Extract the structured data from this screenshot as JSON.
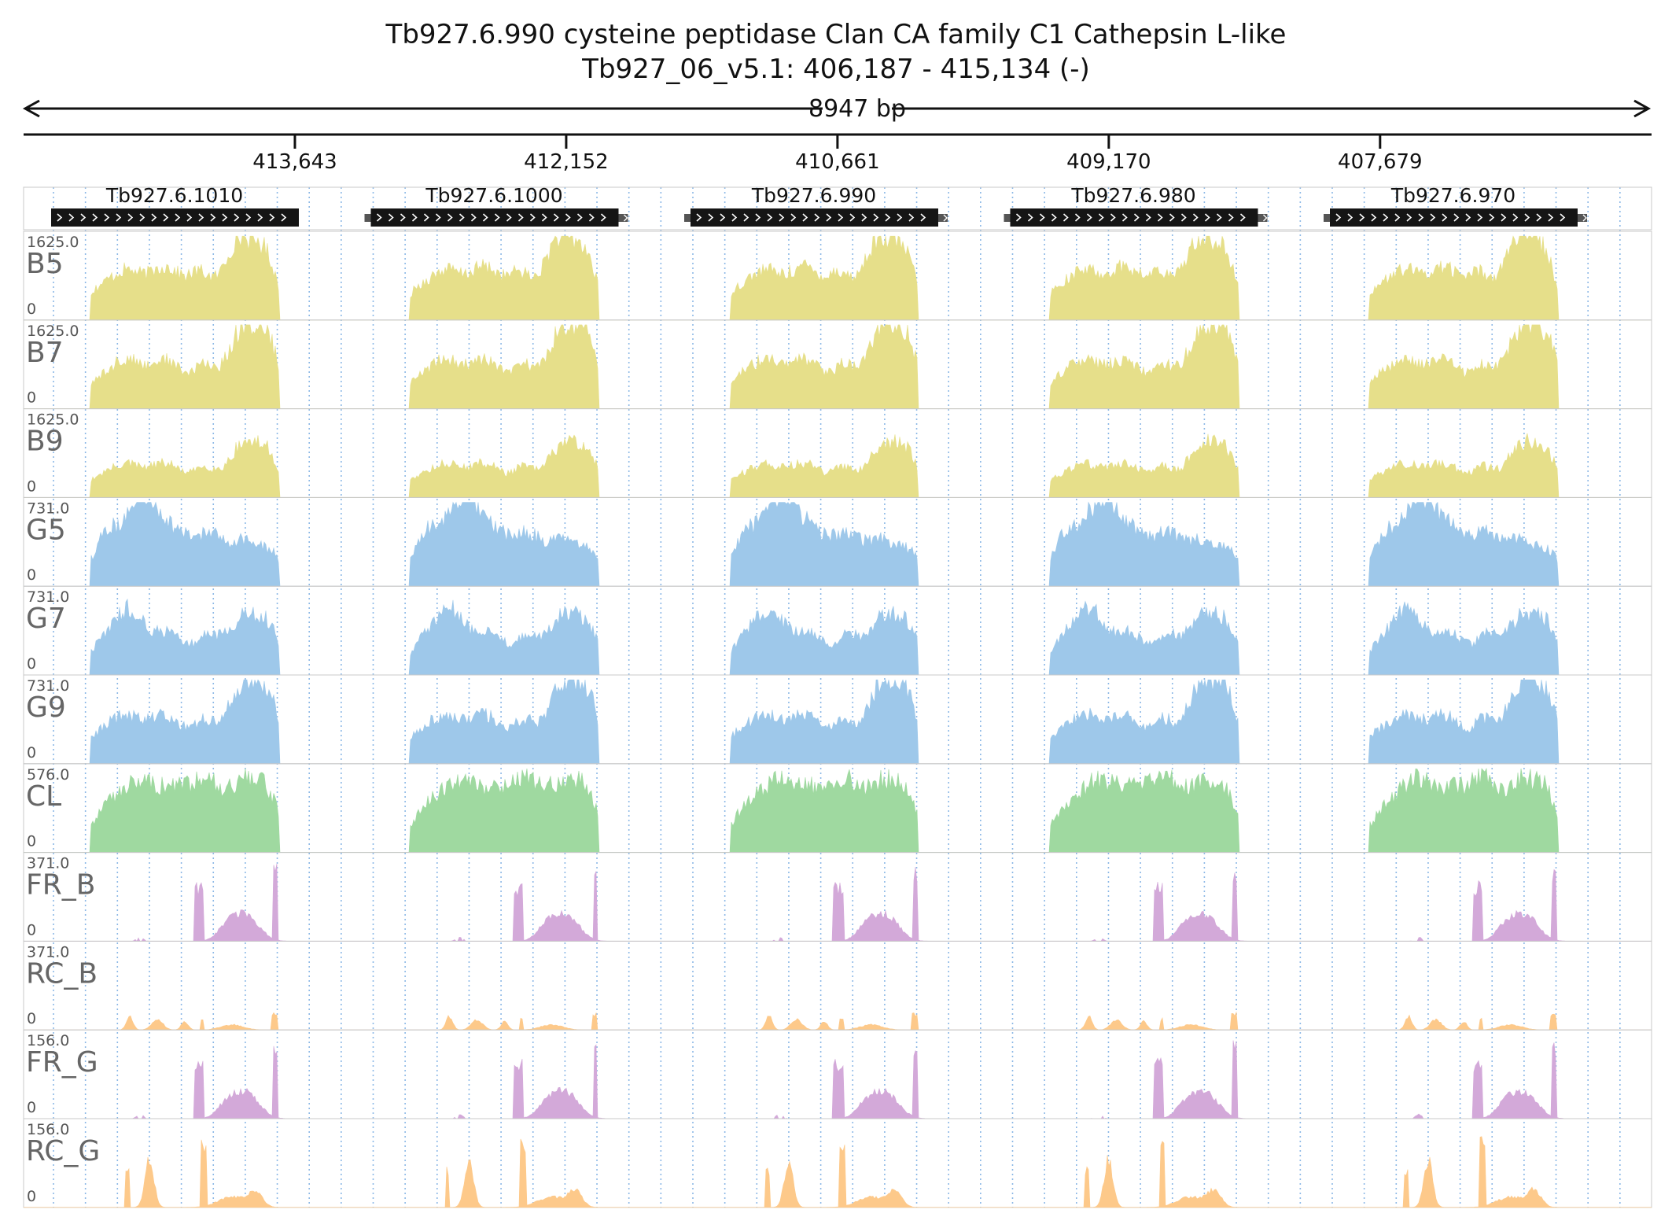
{
  "title": {
    "line1": "Tb927.6.990  cysteine peptidase  Clan CA  family C1  Cathepsin L-like",
    "line2": "Tb927_06_v5.1: 406,187 - 415,134 (-)"
  },
  "scale": {
    "span_label": "8947 bp"
  },
  "chart_data": {
    "type": "area",
    "region": {
      "chrom": "Tb927_06_v5.1",
      "start": 406187,
      "end": 415134,
      "strand": "-"
    },
    "x_ticks": [
      "413,643",
      "412,152",
      "410,661",
      "409,170",
      "407,679"
    ],
    "genes": [
      {
        "name": "Tb927.6.1010"
      },
      {
        "name": "Tb927.6.1000"
      },
      {
        "name": "Tb927.6.990"
      },
      {
        "name": "Tb927.6.980"
      },
      {
        "name": "Tb927.6.970"
      }
    ],
    "tracks": [
      {
        "name": "B5",
        "max": "1625.0",
        "min": "0",
        "color": "#e6df8a",
        "profile": "b5"
      },
      {
        "name": "B7",
        "max": "1625.0",
        "min": "0",
        "color": "#e6df8a",
        "profile": "b7"
      },
      {
        "name": "B9",
        "max": "1625.0",
        "min": "0",
        "color": "#e6df8a",
        "profile": "b9"
      },
      {
        "name": "G5",
        "max": "731.0",
        "min": "0",
        "color": "#9ec8ea",
        "profile": "g5"
      },
      {
        "name": "G7",
        "max": "731.0",
        "min": "0",
        "color": "#9ec8ea",
        "profile": "g7"
      },
      {
        "name": "G9",
        "max": "731.0",
        "min": "0",
        "color": "#9ec8ea",
        "profile": "b7"
      },
      {
        "name": "CL",
        "max": "576.0",
        "min": "0",
        "color": "#9fd9a0",
        "profile": "cl"
      },
      {
        "name": "FR_B",
        "max": "371.0",
        "min": "0",
        "color": "#d3a9d9",
        "profile": "fr"
      },
      {
        "name": "RC_B",
        "max": "371.0",
        "min": "0",
        "color": "#fdc98a",
        "profile": "rcb"
      },
      {
        "name": "FR_G",
        "max": "156.0",
        "min": "0",
        "color": "#d3a9d9",
        "profile": "fr"
      },
      {
        "name": "RC_G",
        "max": "156.0",
        "min": "0",
        "color": "#fdc98a",
        "profile": "rcg"
      }
    ]
  }
}
